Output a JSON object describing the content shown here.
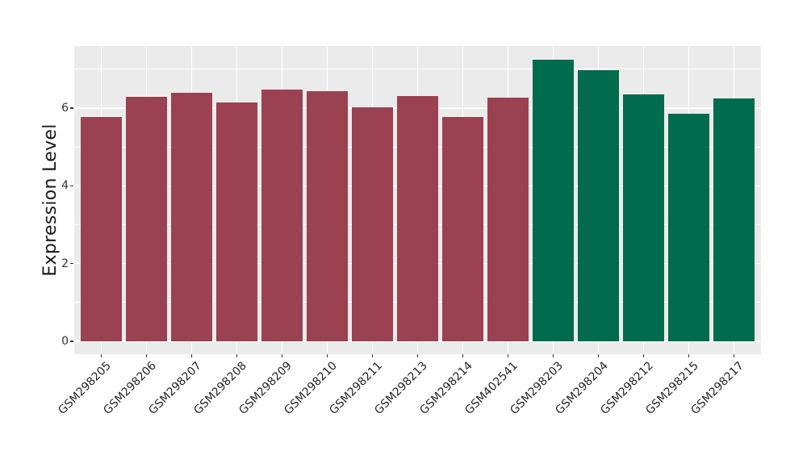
{
  "chart_data": {
    "type": "bar",
    "title": "",
    "xlabel": "",
    "ylabel": "Expression Level",
    "categories": [
      "GSM298205",
      "GSM298206",
      "GSM298207",
      "GSM298208",
      "GSM298209",
      "GSM298210",
      "GSM298211",
      "GSM298213",
      "GSM298214",
      "GSM402541",
      "GSM298203",
      "GSM298204",
      "GSM298212",
      "GSM298215",
      "GSM298217"
    ],
    "values": [
      5.78,
      6.3,
      6.4,
      6.15,
      6.48,
      6.44,
      6.01,
      6.31,
      5.78,
      6.27,
      7.25,
      6.98,
      6.36,
      5.86,
      6.25
    ],
    "bar_colors": [
      "#9A4251",
      "#9A4251",
      "#9A4251",
      "#9A4251",
      "#9A4251",
      "#9A4251",
      "#9A4251",
      "#9A4251",
      "#9A4251",
      "#9A4251",
      "#006B4D",
      "#006B4D",
      "#006B4D",
      "#006B4D",
      "#006B4D"
    ],
    "yticks": [
      0,
      2,
      4,
      6
    ],
    "yticks_minor": [
      1,
      3,
      5,
      7
    ],
    "ylim": [
      -0.33,
      7.6
    ],
    "grid": "on",
    "legend": "none",
    "colors": {
      "panel_bg": "#EBEBEB",
      "grid": "#FFFFFF",
      "bar_group_left": "#9A4251",
      "bar_group_right": "#006B4D",
      "tick_text": "#333333",
      "axis_title_text": "#1A1A1A",
      "figure_bg": "#FFFFFF"
    }
  }
}
